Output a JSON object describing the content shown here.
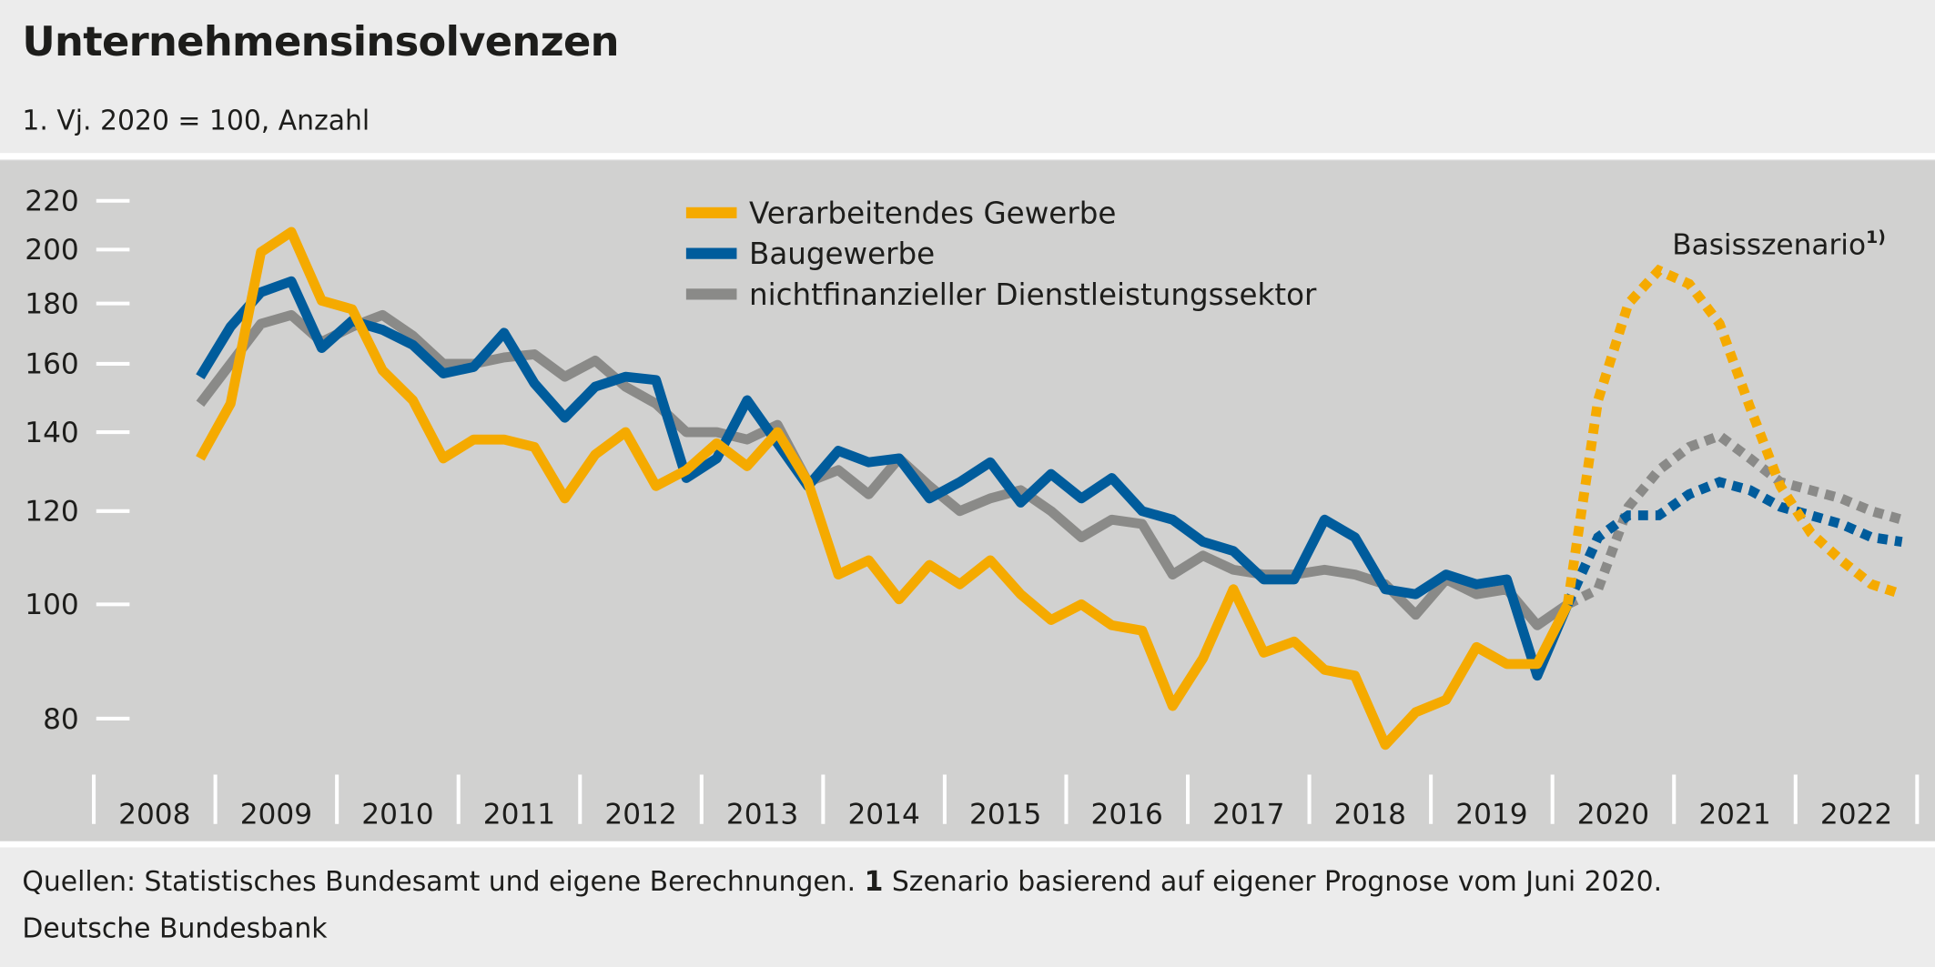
{
  "header": {
    "title": "Unternehmensinsolvenzen",
    "subtitle": "1. Vj. 2020 = 100, Anzahl"
  },
  "footer": {
    "sources_prefix": "Quellen: Statistisches Bundesamt und eigene Berechnungen.",
    "note_number": "1",
    "note_text": "Szenario basierend auf eigener Prognose vom Juni 2020.",
    "publisher": "Deutsche Bundesbank"
  },
  "chart_data": {
    "type": "line",
    "title": "Unternehmensinsolvenzen",
    "subtitle": "1. Vj. 2020 = 100, Anzahl",
    "y_scale": "log",
    "ylim": [
      70,
      230
    ],
    "y_ticks": [
      "80",
      "100",
      "120",
      "140",
      "160",
      "180",
      "200",
      "220"
    ],
    "x_tick_labels": [
      "2008",
      "2009",
      "2010",
      "2011",
      "2012",
      "2013",
      "2014",
      "2015",
      "2016",
      "2017",
      "2018",
      "2019",
      "2020",
      "2021",
      "2022"
    ],
    "grid": false,
    "legend_position": "top-center",
    "forecast_from": "2020 Q1",
    "forecast_style": "dotted",
    "annotation": {
      "text": "Basisszenario",
      "superscript": "1)"
    },
    "x": [
      "2008 Q4",
      "2009 Q1",
      "2009 Q2",
      "2009 Q3",
      "2009 Q4",
      "2010 Q1",
      "2010 Q2",
      "2010 Q3",
      "2010 Q4",
      "2011 Q1",
      "2011 Q2",
      "2011 Q3",
      "2011 Q4",
      "2012 Q1",
      "2012 Q2",
      "2012 Q3",
      "2012 Q4",
      "2013 Q1",
      "2013 Q2",
      "2013 Q3",
      "2013 Q4",
      "2014 Q1",
      "2014 Q2",
      "2014 Q3",
      "2014 Q4",
      "2015 Q1",
      "2015 Q2",
      "2015 Q3",
      "2015 Q4",
      "2016 Q1",
      "2016 Q2",
      "2016 Q3",
      "2016 Q4",
      "2017 Q1",
      "2017 Q2",
      "2017 Q3",
      "2017 Q4",
      "2018 Q1",
      "2018 Q2",
      "2018 Q3",
      "2018 Q4",
      "2019 Q1",
      "2019 Q2",
      "2019 Q3",
      "2019 Q4",
      "2020 Q1",
      "2020 Q2",
      "2020 Q3",
      "2020 Q4",
      "2021 Q1",
      "2021 Q2",
      "2021 Q3",
      "2021 Q4",
      "2022 Q1",
      "2022 Q2",
      "2022 Q3",
      "2022 Q4"
    ],
    "series": [
      {
        "name": "Verarbeitendes Gewerbe",
        "color": "#f5aa00",
        "values": [
          133,
          148,
          199,
          207,
          181,
          178,
          158,
          149,
          133,
          138,
          138,
          136,
          123,
          134,
          140,
          126,
          130,
          137,
          131,
          140,
          127,
          106,
          109,
          101,
          108,
          104,
          109,
          102,
          97,
          100,
          96,
          95,
          82,
          90,
          103,
          91,
          93,
          88,
          87,
          76,
          81,
          83,
          92,
          89,
          89,
          100,
          149,
          180,
          192,
          187,
          173,
          147,
          126,
          115,
          109,
          104,
          102
        ]
      },
      {
        "name": "Baugewerbe",
        "color": "#005c9c",
        "values": [
          156,
          172,
          184,
          188,
          165,
          174,
          171,
          166,
          157,
          159,
          170,
          154,
          144,
          153,
          156,
          155,
          128,
          133,
          149,
          137,
          126,
          135,
          132,
          133,
          123,
          127,
          132,
          122,
          129,
          123,
          128,
          120,
          118,
          113,
          111,
          105,
          105,
          118,
          114,
          103,
          102,
          106,
          104,
          105,
          87,
          100,
          114,
          119,
          119,
          124,
          127,
          125,
          121,
          119,
          117,
          114,
          113
        ]
      },
      {
        "name": "nichtfinanzieller Dienstleistungssektor",
        "color": "#8a8a88",
        "values": [
          148,
          160,
          173,
          176,
          167,
          172,
          176,
          169,
          160,
          160,
          162,
          163,
          156,
          161,
          153,
          148,
          140,
          140,
          138,
          142,
          127,
          130,
          124,
          133,
          126,
          120,
          123,
          125,
          120,
          114,
          118,
          117,
          106,
          110,
          107,
          106,
          106,
          107,
          106,
          104,
          98,
          105,
          102,
          103,
          96,
          100,
          103,
          121,
          130,
          136,
          139,
          133,
          127,
          125,
          123,
          120,
          118
        ]
      }
    ]
  }
}
